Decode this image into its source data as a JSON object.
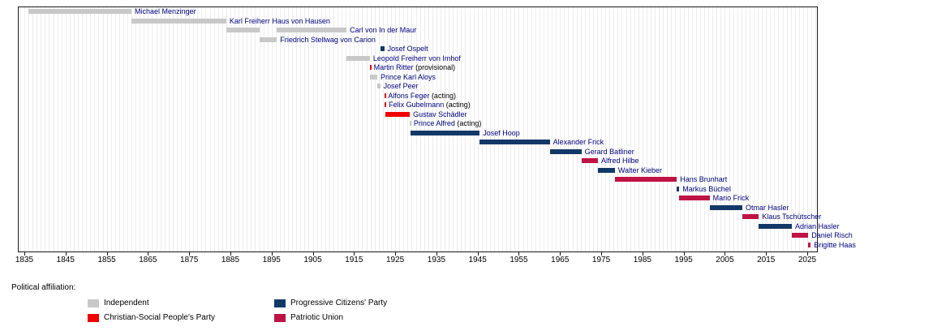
{
  "chart_data": {
    "type": "timeline",
    "subtype": "horizontal-gantt",
    "title": "",
    "x_axis": {
      "start": 1835,
      "end": 2027,
      "tick_years": [
        1835,
        1845,
        1855,
        1865,
        1875,
        1885,
        1895,
        1905,
        1915,
        1925,
        1935,
        1945,
        1955,
        1965,
        1975,
        1985,
        1995,
        2005,
        2015,
        2025
      ],
      "gridline_step_years": 1
    },
    "legend": {
      "title": "Political affiliation:"
    },
    "parties": {
      "independent": {
        "label": "Independent",
        "color": "#c8c8c8"
      },
      "vp": {
        "label": "Christian-Social People's Party",
        "color": "#f00000"
      },
      "fbp": {
        "label": "Progressive Citizens' Party",
        "color": "#123868"
      },
      "vu": {
        "label": "Patriotic Union",
        "color": "#bf1245"
      }
    },
    "people": [
      {
        "name": "Michael Menzinger",
        "party": "independent",
        "terms": [
          {
            "start": 1836.0,
            "end": 1861.0
          }
        ]
      },
      {
        "name": "Karl Freiherr Haus von Hausen",
        "party": "independent",
        "terms": [
          {
            "start": 1861.0,
            "end": 1884.0
          }
        ]
      },
      {
        "name": "Carl von In der Maur",
        "party": "independent",
        "terms": [
          {
            "start": 1884.0,
            "end": 1892.1
          },
          {
            "start": 1896.3,
            "end": 1913.2
          }
        ]
      },
      {
        "name": "Friedrich Stellwag von Carion",
        "party": "independent",
        "terms": [
          {
            "start": 1892.1,
            "end": 1896.3
          }
        ]
      },
      {
        "name": "Josef Ospelt",
        "party": "fbp",
        "terms": [
          {
            "start": 1921.35,
            "end": 1922.35
          }
        ]
      },
      {
        "name": "Leopold Freiherr von Imhof",
        "party": "independent",
        "terms": [
          {
            "start": 1913.2,
            "end": 1918.85
          }
        ]
      },
      {
        "name": "Martin Ritter",
        "suffix": "(provisional)",
        "party": "vp",
        "terms": [
          {
            "start": 1918.85,
            "end": 1919.0
          }
        ]
      },
      {
        "name": "Prince Karl Aloys",
        "party": "independent",
        "terms": [
          {
            "start": 1918.95,
            "end": 1920.65
          }
        ]
      },
      {
        "name": "Josef Peer",
        "party": "independent",
        "terms": [
          {
            "start": 1920.65,
            "end": 1921.35
          }
        ]
      },
      {
        "name": "Alfons Feger",
        "suffix": "(acting)",
        "party": "vp",
        "terms": [
          {
            "start": 1922.35,
            "end": 1922.5
          }
        ]
      },
      {
        "name": "Felix Gubelmann",
        "suffix": "(acting)",
        "party": "vp",
        "terms": [
          {
            "start": 1922.5,
            "end": 1922.65
          }
        ]
      },
      {
        "name": "Gustav Schädler",
        "party": "vp",
        "terms": [
          {
            "start": 1922.65,
            "end": 1928.55
          }
        ]
      },
      {
        "name": "Prince Alfred",
        "suffix": "(acting)",
        "party": "independent",
        "terms": [
          {
            "start": 1928.55,
            "end": 1928.7
          }
        ]
      },
      {
        "name": "Josef Hoop",
        "party": "fbp",
        "terms": [
          {
            "start": 1928.7,
            "end": 1945.5
          }
        ]
      },
      {
        "name": "Alexander Frick",
        "party": "fbp",
        "terms": [
          {
            "start": 1945.5,
            "end": 1962.5
          }
        ]
      },
      {
        "name": "Gerard Batliner",
        "party": "fbp",
        "terms": [
          {
            "start": 1962.5,
            "end": 1970.2
          }
        ]
      },
      {
        "name": "Alfred Hilbe",
        "party": "vu",
        "terms": [
          {
            "start": 1970.2,
            "end": 1974.2
          }
        ]
      },
      {
        "name": "Walter Kieber",
        "party": "fbp",
        "terms": [
          {
            "start": 1974.2,
            "end": 1978.3
          }
        ]
      },
      {
        "name": "Hans Brunhart",
        "party": "vu",
        "terms": [
          {
            "start": 1978.3,
            "end": 1993.35
          }
        ]
      },
      {
        "name": "Markus Büchel",
        "party": "fbp",
        "terms": [
          {
            "start": 1993.35,
            "end": 1993.95
          }
        ]
      },
      {
        "name": "Mario Frick",
        "party": "vu",
        "terms": [
          {
            "start": 1993.95,
            "end": 2001.3
          }
        ]
      },
      {
        "name": "Otmar Hasler",
        "party": "fbp",
        "terms": [
          {
            "start": 2001.3,
            "end": 2009.25
          }
        ]
      },
      {
        "name": "Klaus Tschütscher",
        "party": "vu",
        "terms": [
          {
            "start": 2009.25,
            "end": 2013.25
          }
        ]
      },
      {
        "name": "Adrian Hasler",
        "party": "fbp",
        "terms": [
          {
            "start": 2013.25,
            "end": 2021.25
          }
        ]
      },
      {
        "name": "Daniel Risch",
        "party": "vu",
        "terms": [
          {
            "start": 2021.25,
            "end": 2025.25
          }
        ]
      },
      {
        "name": "Brigitte Haas",
        "party": "vu",
        "terms": [
          {
            "start": 2025.25,
            "end": 2025.85
          }
        ]
      }
    ]
  }
}
